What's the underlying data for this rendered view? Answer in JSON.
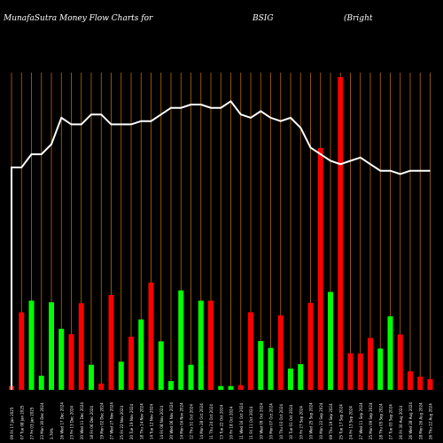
{
  "header": {
    "left": "MunafaSutra  Money Flow  Charts for",
    "symbol": "BSIG",
    "company": "(Bright"
  },
  "chart_data": {
    "type": "bar",
    "colors": {
      "up": "#00ff00",
      "down": "#ff0000",
      "line": "#ffffff",
      "gridline": "#b8690b",
      "background": "#000000"
    },
    "ylim": [
      0,
      100
    ],
    "categories": [
      "09 Fri 17 Jan 2025",
      "07 Tue 08 Jan 2025",
      "27 Fri 03 Jan 2025",
      "23 Mon 30 Dec 2024",
      "3.79%",
      "26 Wed 17 Dec 2024",
      "23 Fri 13 Dec 2024",
      "20 Wed 11 Dec 2024",
      "18 Fri 06 Dec 2024",
      "19 Mon 02 Dec 2024",
      "27 Wed 27 Nov 2024",
      "25 Fri 22 Nov 2024",
      "20 Tue 19 Nov 2024",
      "18 Thu 14 Nov 2024",
      "14 Tue 12 Nov 2024",
      "14 Fri 08 Nov 2024",
      "20 Wed 06 Nov 2024",
      "14 Mon 04 Nov 2024",
      "12 Thu 31 Oct 2024",
      "14 Mon 28 Oct 2024",
      "11 Thu 24 Oct 2024",
      "13 Tue 22 Oct 2024",
      "10 Fri 18 Oct 2024",
      "11 Wed 16 Oct 2024",
      "11 Fri 11 Oct 2024",
      "10 Wed 09 Oct 2024",
      "10 Mon 07 Oct 2024",
      "10 Thu 03 Oct 2024",
      "10 Tue 01 Oct 2024",
      "10 Fri 27 Sep 2024",
      "10 Wed 25 Sep 2024",
      "10 Mon 23 Sep 2024",
      "09 Thu 19 Sep 2024",
      "25 Tue 17 Sep 2024",
      "24 Fri 13 Sep 2024",
      "27 Wed 11 Sep 2024",
      "25 Mon 09 Sep 2024",
      "28 Thu 05 Sep 2024",
      "27 Tue 03 Sep 2024",
      "26 Fri 30 Aug 2024",
      "26 Wed 28 Aug 2024",
      "28 Mon 26 Aug 2024",
      "26 Thu 22 Aug 2024"
    ],
    "bar_colors": [
      "red",
      "red",
      "green",
      "green",
      "green",
      "green",
      "red",
      "red",
      "green",
      "red",
      "red",
      "green",
      "red",
      "green",
      "red",
      "green",
      "green",
      "green",
      "green",
      "green",
      "red",
      "green",
      "green",
      "red",
      "red",
      "green",
      "green",
      "red",
      "green",
      "green",
      "red",
      "red",
      "green",
      "red",
      "red",
      "red",
      "red",
      "green",
      "green",
      "red",
      "red",
      "red",
      "red"
    ],
    "values": [
      1.2,
      24.8,
      28.5,
      4.5,
      28.0,
      19.5,
      17.8,
      27.7,
      8.0,
      2.0,
      30.3,
      9.0,
      17.0,
      22.5,
      34.3,
      15.5,
      2.8,
      31.8,
      8.0,
      28.5,
      28.5,
      1.2,
      1.2,
      1.5,
      24.8,
      15.6,
      13.4,
      23.8,
      6.8,
      8.2,
      27.8,
      77.3,
      31.3,
      100.0,
      11.7,
      11.6,
      16.6,
      13.2,
      23.5,
      17.7,
      5.9,
      4.2,
      3.4
    ],
    "line_values": [
      71,
      71,
      75,
      75,
      78,
      86,
      84,
      84,
      87,
      87,
      84,
      84,
      84,
      85,
      85,
      87,
      89,
      89,
      90,
      90,
      89,
      89,
      91,
      87,
      86,
      88,
      86,
      85,
      86,
      83,
      77,
      75,
      73,
      72,
      73,
      74,
      72,
      70,
      70,
      69,
      70,
      70,
      70
    ]
  }
}
